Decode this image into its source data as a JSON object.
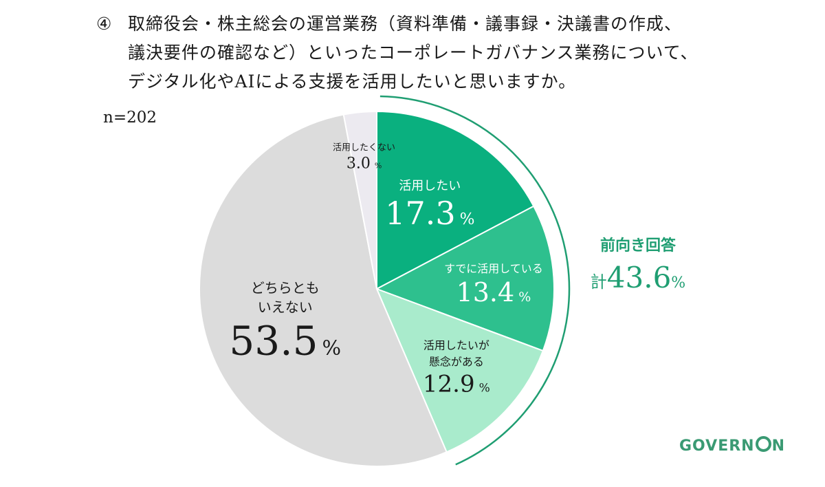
{
  "question": {
    "lines": [
      "取締役会・株主総会の運営業務（資料準備・議事録・決議書の作成、",
      "議決要件の確認など）といったコーポレートガバナンス業務について、",
      "デジタル化やAIによる支援を活用したいと思いますか。"
    ],
    "number": "④"
  },
  "sample_size": "n=202",
  "logo": {
    "pre": "GOVERN",
    "post": "N"
  },
  "chart_data": {
    "type": "pie",
    "start": "top",
    "direction": "clockwise",
    "slices": [
      {
        "label": "活用したい",
        "value": 17.3,
        "value_text": "17.3",
        "color": "#0ab07f",
        "text_color": "#ffffff"
      },
      {
        "label": "すでに活用している",
        "value": 13.4,
        "value_text": "13.4",
        "color": "#2ec08e",
        "text_color": "#ffffff"
      },
      {
        "label": "活用したいが\n懸念がある",
        "value": 12.9,
        "value_text": "12.9",
        "color": "#a9ebcc",
        "text_color": "#1a1a1a"
      },
      {
        "label": "どちらとも\nいえない",
        "value": 53.5,
        "value_text": "53.5",
        "color": "#dcdcdc",
        "text_color": "#1a1a1a"
      },
      {
        "label": "活用したくない",
        "value": 3.0,
        "value_text": "3.0",
        "color": "#eceaf0",
        "text_color": "#1a1a1a"
      }
    ],
    "unit": "%",
    "annotation": {
      "label": "前向き回答",
      "prefix": "計",
      "value": "43.6",
      "unit": "%",
      "color": "#1f9e72"
    }
  }
}
